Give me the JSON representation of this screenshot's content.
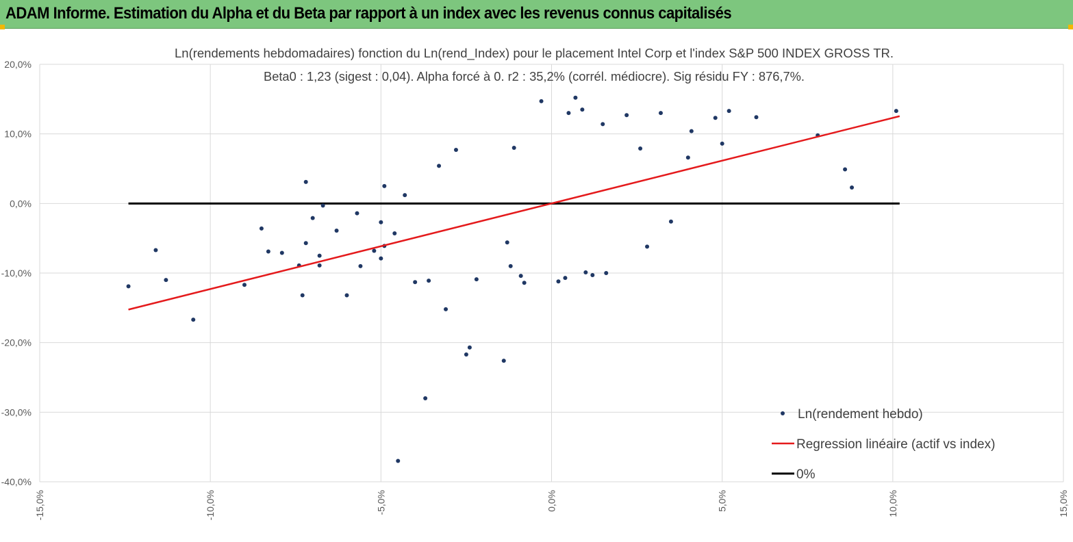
{
  "header": {
    "title": "ADAM Informe. Estimation du Alpha et du Beta par rapport à un index avec les revenus connus capitalisés"
  },
  "colors": {
    "header_bg": "#7dc67e",
    "points": "#203864",
    "regression": "#e41a1c",
    "zero_line": "#000000",
    "grid": "#d9d9d9"
  },
  "chart_data": {
    "type": "scatter",
    "title": "Ln(rendements hebdomadaires) fonction du Ln(rend_Index) pour le placement Intel Corp et l'index S&P 500 INDEX GROSS TR.",
    "subtitle": "Beta0 : 1,23  (sigest : 0,04). Alpha forcé à 0. r2 : 35,2% (corrél. médiocre). Sig résidu FY : 876,7%.",
    "xlabel": "",
    "ylabel": "",
    "xlim": [
      -15,
      15
    ],
    "ylim": [
      -40,
      20
    ],
    "x_ticks": [
      "-15,0%",
      "-10,0%",
      "-5,0%",
      "0,0%",
      "5,0%",
      "10,0%",
      "15,0%"
    ],
    "y_ticks": [
      "20,0%",
      "10,0%",
      "0,0%",
      "-10,0%",
      "-20,0%",
      "-30,0%",
      "-40,0%"
    ],
    "grid": "vertical and horizontal",
    "legend_position": "bottom-right",
    "series": [
      {
        "name": "Ln(rendement hebdo)",
        "kind": "scatter",
        "points": [
          [
            -12.4,
            -11.9
          ],
          [
            -11.6,
            -6.7
          ],
          [
            -11.3,
            -11.0
          ],
          [
            -10.5,
            -16.7
          ],
          [
            -9.0,
            -11.7
          ],
          [
            -8.5,
            -3.6
          ],
          [
            -8.3,
            -6.9
          ],
          [
            -7.9,
            -7.1
          ],
          [
            -7.4,
            -8.9
          ],
          [
            -7.2,
            -5.7
          ],
          [
            -7.3,
            -13.2
          ],
          [
            -7.2,
            3.1
          ],
          [
            -7.0,
            -2.1
          ],
          [
            -6.8,
            -7.5
          ],
          [
            -6.7,
            -0.3
          ],
          [
            -6.8,
            -8.9
          ],
          [
            -6.3,
            -3.9
          ],
          [
            -6.0,
            -13.2
          ],
          [
            -5.7,
            -1.4
          ],
          [
            -5.6,
            -9.0
          ],
          [
            -5.2,
            -6.8
          ],
          [
            -5.0,
            -7.9
          ],
          [
            -5.0,
            -2.7
          ],
          [
            -4.9,
            -6.1
          ],
          [
            -4.9,
            2.5
          ],
          [
            -4.6,
            -4.3
          ],
          [
            -4.5,
            -37.0
          ],
          [
            -4.3,
            1.2
          ],
          [
            -4.0,
            -11.3
          ],
          [
            -3.7,
            -28.0
          ],
          [
            -3.6,
            -11.1
          ],
          [
            -3.3,
            5.4
          ],
          [
            -3.1,
            -15.2
          ],
          [
            -2.8,
            7.7
          ],
          [
            -2.5,
            -21.7
          ],
          [
            -2.4,
            -20.7
          ],
          [
            -2.2,
            -10.9
          ],
          [
            -1.4,
            -22.6
          ],
          [
            -1.3,
            -5.6
          ],
          [
            -1.2,
            -9.0
          ],
          [
            -0.9,
            -10.4
          ],
          [
            -0.8,
            -11.4
          ],
          [
            -0.3,
            14.7
          ],
          [
            0.2,
            -11.2
          ],
          [
            0.5,
            13.0
          ],
          [
            0.7,
            15.2
          ],
          [
            0.9,
            13.5
          ],
          [
            0.4,
            -10.7
          ],
          [
            1.0,
            -9.9
          ],
          [
            1.2,
            -10.3
          ],
          [
            1.6,
            -10.0
          ],
          [
            3.2,
            13.0
          ],
          [
            3.5,
            -2.6
          ],
          [
            4.1,
            10.4
          ],
          [
            4.8,
            12.3
          ],
          [
            5.2,
            13.3
          ],
          [
            6.0,
            12.4
          ],
          [
            7.8,
            9.8
          ],
          [
            8.6,
            4.9
          ],
          [
            8.8,
            2.3
          ],
          [
            10.1,
            13.3
          ],
          [
            -1.1,
            8.0
          ],
          [
            1.5,
            11.4
          ],
          [
            2.2,
            12.7
          ],
          [
            2.6,
            7.9
          ],
          [
            4.0,
            6.6
          ],
          [
            5.0,
            8.6
          ],
          [
            2.8,
            -6.2
          ]
        ]
      },
      {
        "name": "Regression linéaire (actif vs index)",
        "kind": "line",
        "points": [
          [
            -12.4,
            -15.25
          ],
          [
            10.2,
            12.55
          ]
        ]
      },
      {
        "name": "0%",
        "kind": "line",
        "points": [
          [
            -12.4,
            0
          ],
          [
            10.2,
            0
          ]
        ]
      }
    ]
  }
}
